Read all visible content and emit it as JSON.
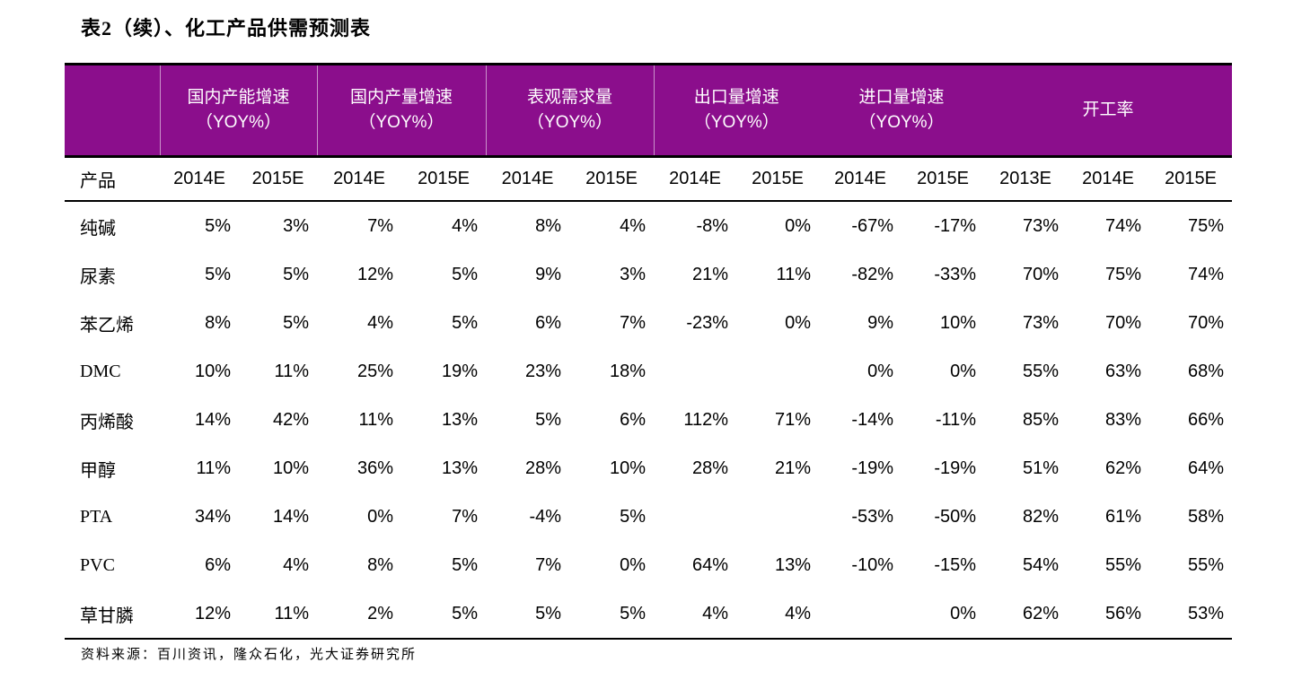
{
  "page": {
    "title": "表2（续）、化工产品供需预测表",
    "source_note": "资料来源：百川资讯，隆众石化，光大证券研究所"
  },
  "colors": {
    "header_bg": "#8B0E8C",
    "header_text": "#FFFFFF",
    "rule_black": "#000000",
    "header_separator": "rgba(255,255,255,0.55)"
  },
  "table": {
    "product_col_header": "产品",
    "groups": [
      {
        "label": "国内产能增速",
        "sub": "（YOY%）",
        "span": 2
      },
      {
        "label": "国内产量增速",
        "sub": "（YOY%）",
        "span": 2
      },
      {
        "label": "表观需求量",
        "sub": "（YOY%）",
        "span": 2
      },
      {
        "label": "出口量增速",
        "sub": "（YOY%）",
        "span": 2
      },
      {
        "label": "进口量增速",
        "sub": "（YOY%）",
        "span": 2
      },
      {
        "label": "开工率",
        "sub": "",
        "span": 3
      }
    ],
    "year_headers": [
      "2014E",
      "2015E",
      "2014E",
      "2015E",
      "2014E",
      "2015E",
      "2014E",
      "2015E",
      "2014E",
      "2015E",
      "2013E",
      "2014E",
      "2015E"
    ],
    "rows": [
      {
        "product": "纯碱",
        "values": [
          "5%",
          "3%",
          "7%",
          "4%",
          "8%",
          "4%",
          "-8%",
          "0%",
          "-67%",
          "-17%",
          "73%",
          "74%",
          "75%"
        ]
      },
      {
        "product": "尿素",
        "values": [
          "5%",
          "5%",
          "12%",
          "5%",
          "9%",
          "3%",
          "21%",
          "11%",
          "-82%",
          "-33%",
          "70%",
          "75%",
          "74%"
        ]
      },
      {
        "product": "苯乙烯",
        "values": [
          "8%",
          "5%",
          "4%",
          "5%",
          "6%",
          "7%",
          "-23%",
          "0%",
          "9%",
          "10%",
          "73%",
          "70%",
          "70%"
        ]
      },
      {
        "product": "DMC",
        "values": [
          "10%",
          "11%",
          "25%",
          "19%",
          "23%",
          "18%",
          "",
          "",
          "0%",
          "0%",
          "55%",
          "63%",
          "68%"
        ]
      },
      {
        "product": "丙烯酸",
        "values": [
          "14%",
          "42%",
          "11%",
          "13%",
          "5%",
          "6%",
          "112%",
          "71%",
          "-14%",
          "-11%",
          "85%",
          "83%",
          "66%"
        ]
      },
      {
        "product": "甲醇",
        "values": [
          "11%",
          "10%",
          "36%",
          "13%",
          "28%",
          "10%",
          "28%",
          "21%",
          "-19%",
          "-19%",
          "51%",
          "62%",
          "64%"
        ]
      },
      {
        "product": "PTA",
        "values": [
          "34%",
          "14%",
          "0%",
          "7%",
          "-4%",
          "5%",
          "",
          "",
          "-53%",
          "-50%",
          "82%",
          "61%",
          "58%"
        ]
      },
      {
        "product": "PVC",
        "values": [
          "6%",
          "4%",
          "8%",
          "5%",
          "7%",
          "0%",
          "64%",
          "13%",
          "-10%",
          "-15%",
          "54%",
          "55%",
          "55%"
        ]
      },
      {
        "product": "草甘膦",
        "values": [
          "12%",
          "11%",
          "2%",
          "5%",
          "5%",
          "5%",
          "4%",
          "4%",
          "",
          "0%",
          "62%",
          "56%",
          "53%"
        ]
      }
    ]
  }
}
